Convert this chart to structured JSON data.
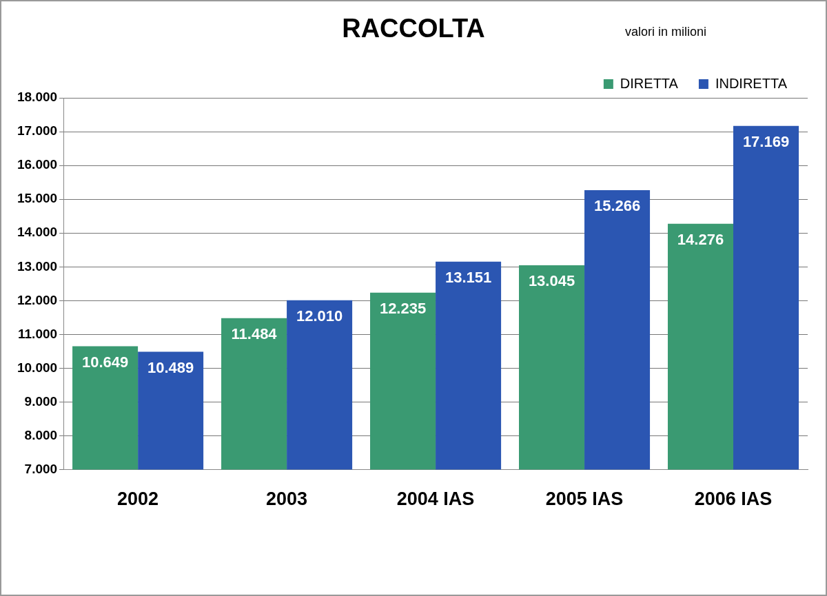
{
  "chart_data": {
    "type": "bar",
    "title": "RACCOLTA",
    "subtitle": "valori in milioni",
    "categories": [
      "2002",
      "2003",
      "2004 IAS",
      "2005 IAS",
      "2006 IAS"
    ],
    "series": [
      {
        "name": "DIRETTA",
        "color": "#3a9a72",
        "values": [
          10649,
          11484,
          12235,
          13045,
          14276
        ],
        "value_labels": [
          "10.649",
          "11.484",
          "12.235",
          "13.045",
          "14.276"
        ]
      },
      {
        "name": "INDIRETTA",
        "color": "#2b56b2",
        "values": [
          10489,
          12010,
          13151,
          15266,
          17169
        ],
        "value_labels": [
          "10.489",
          "12.010",
          "13.151",
          "15.266",
          "17.169"
        ]
      }
    ],
    "ylim": [
      7000,
      18000
    ],
    "yticks": [
      {
        "value": 7000,
        "label": "7.000"
      },
      {
        "value": 8000,
        "label": "8.000"
      },
      {
        "value": 9000,
        "label": "9.000"
      },
      {
        "value": 10000,
        "label": "10.000"
      },
      {
        "value": 11000,
        "label": "11.000"
      },
      {
        "value": 12000,
        "label": "12.000"
      },
      {
        "value": 13000,
        "label": "13.000"
      },
      {
        "value": 14000,
        "label": "14.000"
      },
      {
        "value": 15000,
        "label": "15.000"
      },
      {
        "value": 16000,
        "label": "16.000"
      },
      {
        "value": 17000,
        "label": "17.000"
      },
      {
        "value": 18000,
        "label": "18.000"
      }
    ],
    "grid": "y",
    "legend": "top right"
  }
}
